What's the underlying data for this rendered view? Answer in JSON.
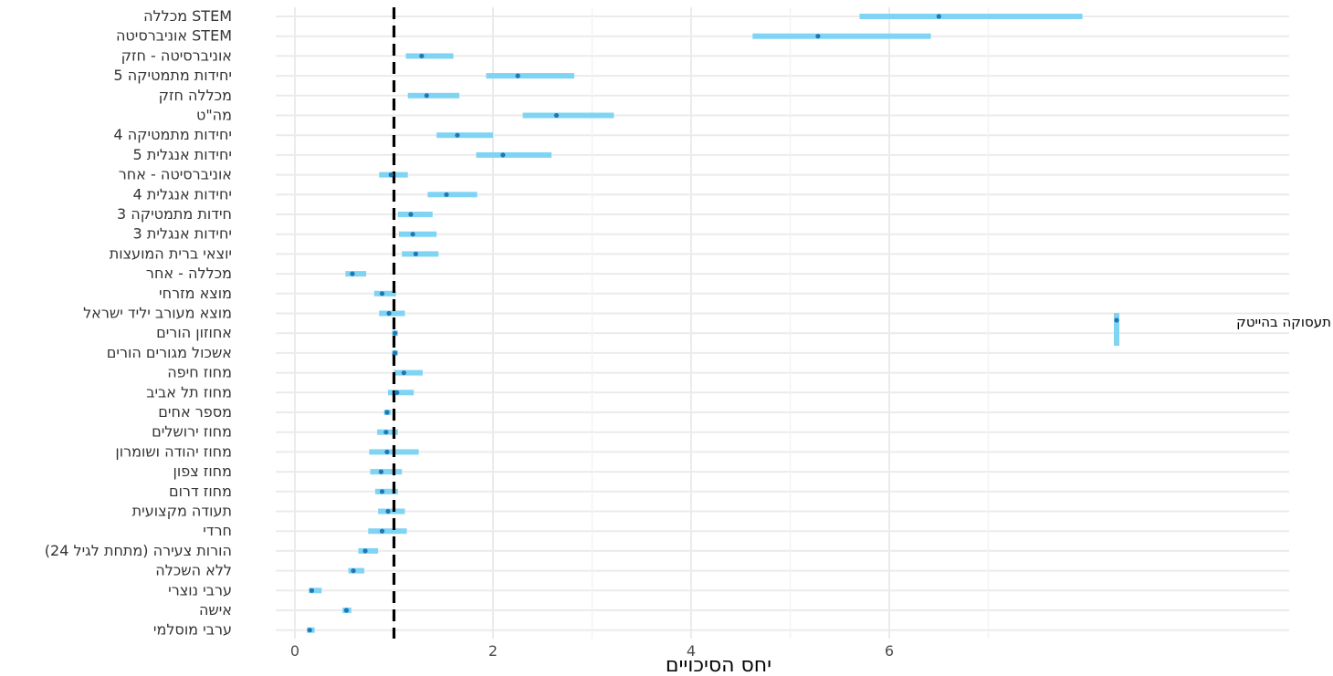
{
  "chart_data": {
    "type": "forest",
    "title": "",
    "xlabel": "יחס הסיכויים",
    "ylabel": "",
    "xlim": [
      -0.2,
      10.1
    ],
    "xticks": [
      0,
      2,
      4,
      6
    ],
    "x_minor_gridlines": [
      1,
      3,
      5,
      7
    ],
    "reference_line": 1,
    "grid": true,
    "panel_label": "תעסוקה בהייטק",
    "color": "#7fd4f4",
    "point_color": "#1f78b4",
    "ref_line_color": "#000000",
    "rows": [
      {
        "label": "מכללה STEM",
        "estimate": 6.5,
        "low": 5.7,
        "high": 7.95
      },
      {
        "label": "אוניברסיטה STEM",
        "estimate": 5.28,
        "low": 4.62,
        "high": 6.42
      },
      {
        "label": "אוניברסיטה - חזק",
        "estimate": 1.28,
        "low": 1.12,
        "high": 1.6
      },
      {
        "label": "5 יחידות מתמטיקה",
        "estimate": 2.25,
        "low": 1.93,
        "high": 2.82
      },
      {
        "label": "מכללה חזק",
        "estimate": 1.33,
        "low": 1.14,
        "high": 1.66
      },
      {
        "label": "מה\"ט",
        "estimate": 2.64,
        "low": 2.3,
        "high": 3.22
      },
      {
        "label": "4 יחידות מתמטיקה",
        "estimate": 1.64,
        "low": 1.43,
        "high": 2.0
      },
      {
        "label": "5 יחידות אנגלית",
        "estimate": 2.1,
        "low": 1.83,
        "high": 2.59
      },
      {
        "label": "אוניברסיטה - אחר",
        "estimate": 0.97,
        "low": 0.85,
        "high": 1.14
      },
      {
        "label": "4 יחידות אנגלית",
        "estimate": 1.53,
        "low": 1.34,
        "high": 1.84
      },
      {
        "label": "3 חידות מתמטיקה",
        "estimate": 1.17,
        "low": 1.04,
        "high": 1.39
      },
      {
        "label": "3 יחידות אנגלית",
        "estimate": 1.19,
        "low": 1.05,
        "high": 1.43
      },
      {
        "label": "יוצאי ברית המועצות",
        "estimate": 1.22,
        "low": 1.08,
        "high": 1.45
      },
      {
        "label": "מכללה - אחר",
        "estimate": 0.58,
        "low": 0.51,
        "high": 0.72
      },
      {
        "label": "מוצא מזרחי",
        "estimate": 0.88,
        "low": 0.8,
        "high": 1.02
      },
      {
        "label": "מוצא מעורב יליד ישראל",
        "estimate": 0.95,
        "low": 0.85,
        "high": 1.11
      },
      {
        "label": "אחוזון הורים",
        "estimate": 1.01,
        "low": 0.98,
        "high": 1.04
      },
      {
        "label": "אשכול מגורים הורים",
        "estimate": 1.01,
        "low": 0.98,
        "high": 1.04
      },
      {
        "label": "מחוז חיפה",
        "estimate": 1.1,
        "low": 1.0,
        "high": 1.29
      },
      {
        "label": "מחוז תל אביב",
        "estimate": 1.03,
        "low": 0.94,
        "high": 1.2
      },
      {
        "label": "מספר אחים",
        "estimate": 0.93,
        "low": 0.9,
        "high": 0.97
      },
      {
        "label": "מחוז ירושלים",
        "estimate": 0.92,
        "low": 0.83,
        "high": 1.04
      },
      {
        "label": "מחוז יהודה ושומרון",
        "estimate": 0.93,
        "low": 0.75,
        "high": 1.25
      },
      {
        "label": "מחוז צפון",
        "estimate": 0.87,
        "low": 0.76,
        "high": 1.08
      },
      {
        "label": "מחוז דרום",
        "estimate": 0.88,
        "low": 0.81,
        "high": 1.04
      },
      {
        "label": "תעודה מקצועית",
        "estimate": 0.94,
        "low": 0.84,
        "high": 1.11
      },
      {
        "label": "חרדי",
        "estimate": 0.88,
        "low": 0.74,
        "high": 1.13
      },
      {
        "label": "הורות צעירה (מתחת לגיל 24)",
        "estimate": 0.71,
        "low": 0.64,
        "high": 0.84
      },
      {
        "label": "ללא השכלה",
        "estimate": 0.59,
        "low": 0.54,
        "high": 0.7
      },
      {
        "label": "ערבי נוצרי",
        "estimate": 0.17,
        "low": 0.14,
        "high": 0.27
      },
      {
        "label": "אישה",
        "estimate": 0.52,
        "low": 0.48,
        "high": 0.57
      },
      {
        "label": "ערבי מוסלמי",
        "estimate": 0.15,
        "low": 0.12,
        "high": 0.2
      }
    ]
  }
}
